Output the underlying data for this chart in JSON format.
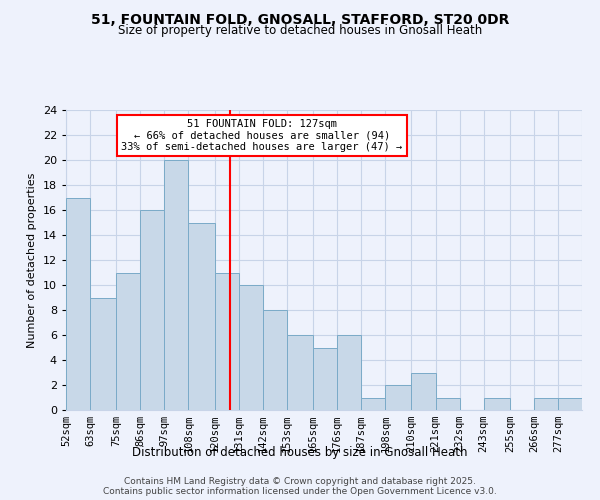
{
  "title": "51, FOUNTAIN FOLD, GNOSALL, STAFFORD, ST20 0DR",
  "subtitle": "Size of property relative to detached houses in Gnosall Heath",
  "xlabel": "Distribution of detached houses by size in Gnosall Heath",
  "ylabel": "Number of detached properties",
  "bin_labels": [
    "52sqm",
    "63sqm",
    "75sqm",
    "86sqm",
    "97sqm",
    "108sqm",
    "120sqm",
    "131sqm",
    "142sqm",
    "153sqm",
    "165sqm",
    "176sqm",
    "187sqm",
    "198sqm",
    "210sqm",
    "221sqm",
    "232sqm",
    "243sqm",
    "255sqm",
    "266sqm",
    "277sqm"
  ],
  "bin_edges": [
    52,
    63,
    75,
    86,
    97,
    108,
    120,
    131,
    142,
    153,
    165,
    176,
    187,
    198,
    210,
    221,
    232,
    243,
    255,
    266,
    277,
    288
  ],
  "counts": [
    17,
    9,
    11,
    16,
    20,
    15,
    11,
    10,
    8,
    6,
    5,
    6,
    1,
    2,
    3,
    1,
    0,
    1,
    0,
    1,
    1
  ],
  "bar_color": "#c8d8e8",
  "bar_edgecolor": "#7aaac8",
  "grid_color": "#c8d4e8",
  "bg_color": "#eef2fc",
  "property_line_x": 127,
  "ylim": [
    0,
    24
  ],
  "yticks": [
    0,
    2,
    4,
    6,
    8,
    10,
    12,
    14,
    16,
    18,
    20,
    22,
    24
  ],
  "annotation_text": "51 FOUNTAIN FOLD: 127sqm\n← 66% of detached houses are smaller (94)\n33% of semi-detached houses are larger (47) →",
  "footer1": "Contains HM Land Registry data © Crown copyright and database right 2025.",
  "footer2": "Contains public sector information licensed under the Open Government Licence v3.0."
}
